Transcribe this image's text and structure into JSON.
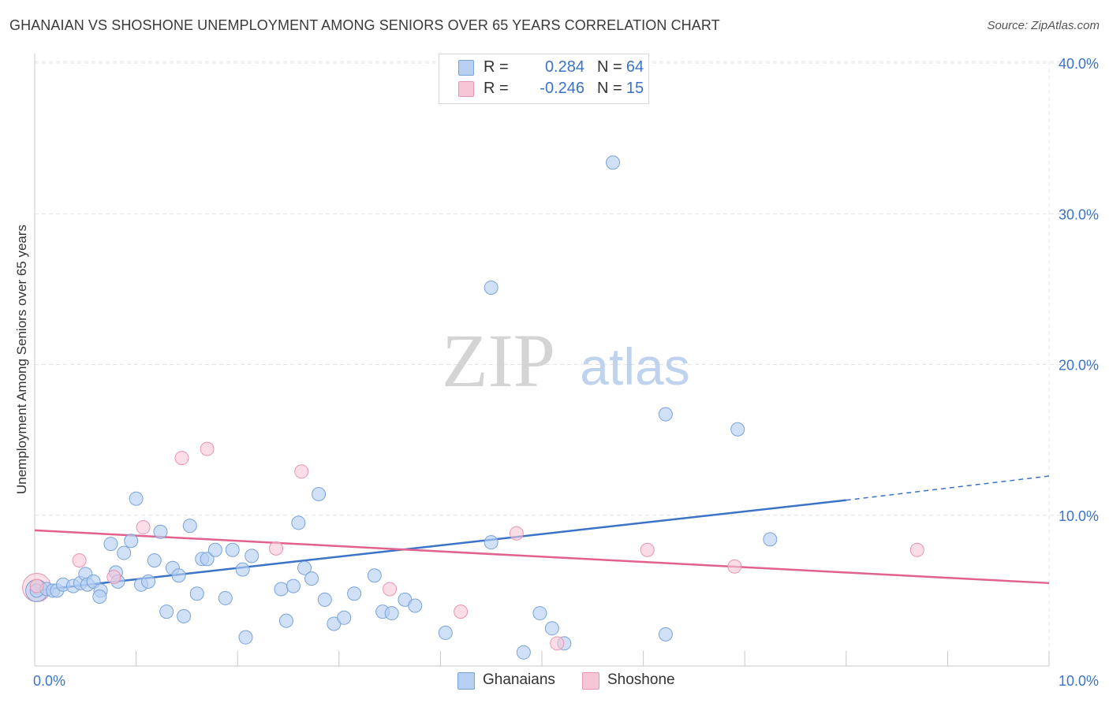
{
  "header": {
    "title": "GHANAIAN VS SHOSHONE UNEMPLOYMENT AMONG SENIORS OVER 65 YEARS CORRELATION CHART",
    "source": "Source: ZipAtlas.com"
  },
  "legend": {
    "rows": [
      {
        "r_label": "R =",
        "r_value": "0.284",
        "n_label": "N =",
        "n_value": "64"
      },
      {
        "r_label": "R =",
        "r_value": "-0.246",
        "n_label": "N =",
        "n_value": "15"
      }
    ]
  },
  "bottom_legend": {
    "series_a": "Ghanaians",
    "series_b": "Shoshone"
  },
  "watermark": {
    "zip": "ZIP",
    "atlas": "atlas"
  },
  "colors": {
    "blue_fill": "#b7d0f2",
    "blue_stroke": "#7aa3d9",
    "blue_line": "#3b73c8",
    "pink_fill": "#f7c6d6",
    "pink_stroke": "#e994b2",
    "pink_line": "#e0628d",
    "tick_text": "#3b73c8",
    "grid": "#e4e4e4"
  },
  "chart_data": {
    "type": "scatter",
    "title": "GHANAIAN VS SHOSHONE UNEMPLOYMENT AMONG SENIORS OVER 65 YEARS CORRELATION CHART",
    "xlabel": "",
    "ylabel": "Unemployment Among Seniors over 65 years",
    "xlim": [
      0,
      10
    ],
    "ylim": [
      0,
      40
    ],
    "x_tick_labels": [
      {
        "value": 0,
        "label": "0.0%"
      },
      {
        "value": 10,
        "label": "10.0%"
      }
    ],
    "y_tick_labels": [
      {
        "value": 10,
        "label": "10.0%"
      },
      {
        "value": 20,
        "label": "20.0%"
      },
      {
        "value": 30,
        "label": "30.0%"
      },
      {
        "value": 40,
        "label": "40.0%"
      }
    ],
    "series": [
      {
        "name": "Ghanaians",
        "r": 0.284,
        "n": 64,
        "trend": {
          "x0": 0.0,
          "y0": 5.0,
          "x1": 8.0,
          "y1": 11.0,
          "dash_to_x": 10.0,
          "dash_to_y": 12.6
        },
        "points": [
          [
            0.02,
            5.0
          ],
          [
            0.12,
            5.1
          ],
          [
            0.18,
            5.0
          ],
          [
            0.22,
            5.0
          ],
          [
            0.28,
            5.4
          ],
          [
            0.38,
            5.3
          ],
          [
            0.45,
            5.5
          ],
          [
            0.5,
            6.1
          ],
          [
            0.52,
            5.4
          ],
          [
            0.58,
            5.6
          ],
          [
            0.65,
            5.0
          ],
          [
            0.64,
            4.6
          ],
          [
            0.75,
            8.1
          ],
          [
            0.8,
            6.2
          ],
          [
            0.82,
            5.6
          ],
          [
            0.88,
            7.5
          ],
          [
            0.95,
            8.3
          ],
          [
            1.0,
            11.1
          ],
          [
            1.05,
            5.4
          ],
          [
            1.12,
            5.6
          ],
          [
            1.18,
            7.0
          ],
          [
            1.24,
            8.9
          ],
          [
            1.3,
            3.6
          ],
          [
            1.36,
            6.5
          ],
          [
            1.42,
            6.0
          ],
          [
            1.47,
            3.3
          ],
          [
            1.53,
            9.3
          ],
          [
            1.6,
            4.8
          ],
          [
            1.65,
            7.1
          ],
          [
            1.7,
            7.1
          ],
          [
            1.78,
            7.7
          ],
          [
            1.88,
            4.5
          ],
          [
            1.95,
            7.7
          ],
          [
            2.05,
            6.4
          ],
          [
            2.08,
            1.9
          ],
          [
            2.14,
            7.3
          ],
          [
            2.43,
            5.1
          ],
          [
            2.48,
            3.0
          ],
          [
            2.55,
            5.3
          ],
          [
            2.6,
            9.5
          ],
          [
            2.66,
            6.5
          ],
          [
            2.73,
            5.8
          ],
          [
            2.8,
            11.4
          ],
          [
            2.86,
            4.4
          ],
          [
            2.95,
            2.8
          ],
          [
            3.05,
            3.2
          ],
          [
            3.15,
            4.8
          ],
          [
            3.35,
            6.0
          ],
          [
            3.43,
            3.6
          ],
          [
            3.52,
            3.5
          ],
          [
            3.65,
            4.4
          ],
          [
            3.75,
            4.0
          ],
          [
            4.05,
            2.2
          ],
          [
            4.5,
            25.1
          ],
          [
            4.5,
            8.2
          ],
          [
            4.82,
            0.9
          ],
          [
            4.98,
            3.5
          ],
          [
            5.1,
            2.5
          ],
          [
            5.22,
            1.5
          ],
          [
            5.7,
            33.4
          ],
          [
            6.22,
            2.1
          ],
          [
            6.22,
            16.7
          ],
          [
            6.93,
            15.7
          ],
          [
            7.25,
            8.4
          ]
        ]
      },
      {
        "name": "Shoshone",
        "r": -0.246,
        "n": 15,
        "trend": {
          "x0": 0.0,
          "y0": 9.0,
          "x1": 10.0,
          "y1": 5.5
        },
        "points": [
          [
            0.02,
            5.3
          ],
          [
            0.44,
            7.0
          ],
          [
            0.78,
            5.9
          ],
          [
            1.07,
            9.2
          ],
          [
            1.45,
            13.8
          ],
          [
            1.7,
            14.4
          ],
          [
            2.38,
            7.8
          ],
          [
            2.63,
            12.9
          ],
          [
            3.5,
            5.1
          ],
          [
            4.2,
            3.6
          ],
          [
            4.75,
            8.8
          ],
          [
            5.15,
            1.5
          ],
          [
            6.04,
            7.7
          ],
          [
            6.9,
            6.6
          ],
          [
            8.7,
            7.7
          ]
        ]
      }
    ]
  }
}
